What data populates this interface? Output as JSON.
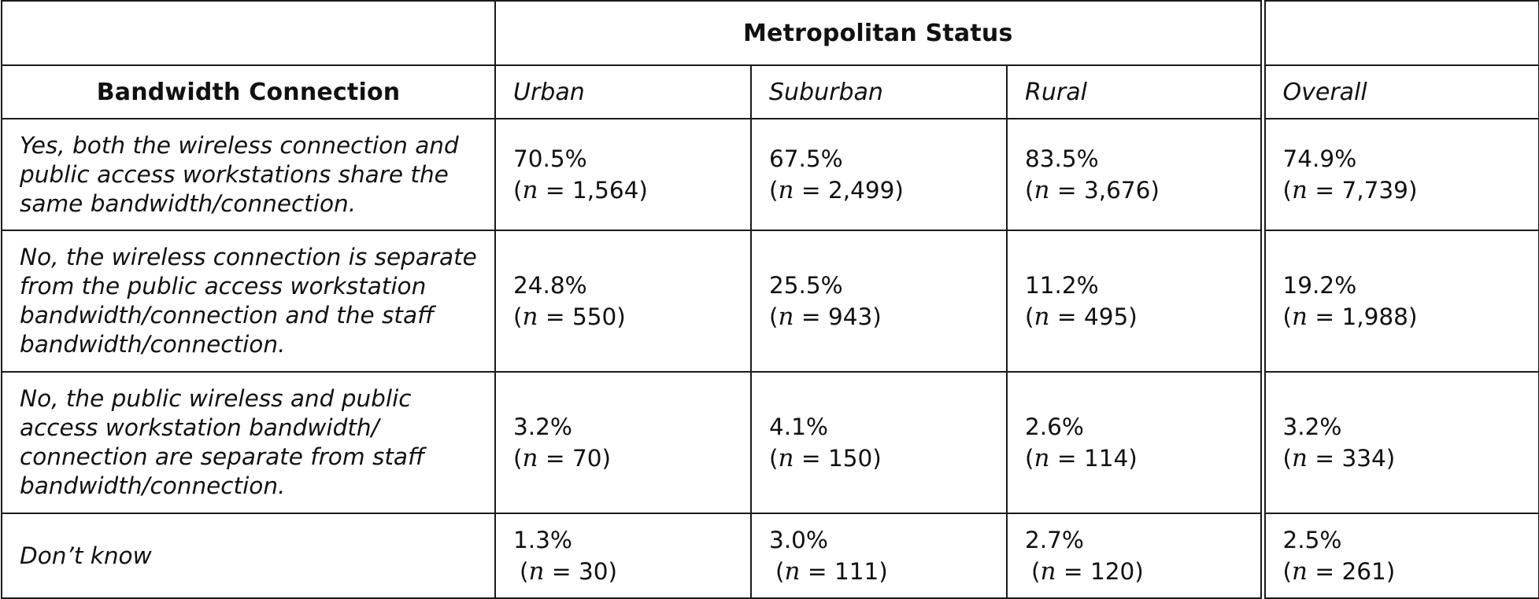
{
  "table": {
    "group_header": "Metropolitan Status",
    "row_header": "Bandwidth Connection",
    "columns": [
      "Urban",
      "Suburban",
      "Rural",
      "Overall"
    ],
    "rows": [
      {
        "label": "Yes, both the wireless connection and public access workstations share the same bandwidth/connection.",
        "cells": [
          {
            "pct": "70.5%",
            "n": "1,564"
          },
          {
            "pct": "67.5%",
            "n": "2,499"
          },
          {
            "pct": "83.5%",
            "n": "3,676"
          },
          {
            "pct": "74.9%",
            "n": "7,739"
          }
        ]
      },
      {
        "label": "No, the wireless connection is separate from the public access workstation bandwidth/connection and the staff bandwidth/connection.",
        "cells": [
          {
            "pct": "24.8%",
            "n": "550"
          },
          {
            "pct": "25.5%",
            "n": "943"
          },
          {
            "pct": "11.2%",
            "n": "495"
          },
          {
            "pct": "19.2%",
            "n": "1,988"
          }
        ]
      },
      {
        "label": "No, the public wireless and public access workstation bandwidth/ connection are separate from staff bandwidth/connection.",
        "cells": [
          {
            "pct": "3.2%",
            "n": "70"
          },
          {
            "pct": "4.1%",
            "n": "150"
          },
          {
            "pct": "2.6%",
            "n": "114"
          },
          {
            "pct": "3.2%",
            "n": "334"
          }
        ]
      },
      {
        "label": "Don’t know",
        "cells": [
          {
            "pct": "1.3%",
            "n": "30"
          },
          {
            "pct": "3.0%",
            "n": "111"
          },
          {
            "pct": "2.7%",
            "n": "120"
          },
          {
            "pct": "2.5%",
            "n": "261"
          }
        ]
      }
    ],
    "n_symbol": "n",
    "n_prefix": "(",
    "n_equals": " = ",
    "n_suffix": ")"
  }
}
